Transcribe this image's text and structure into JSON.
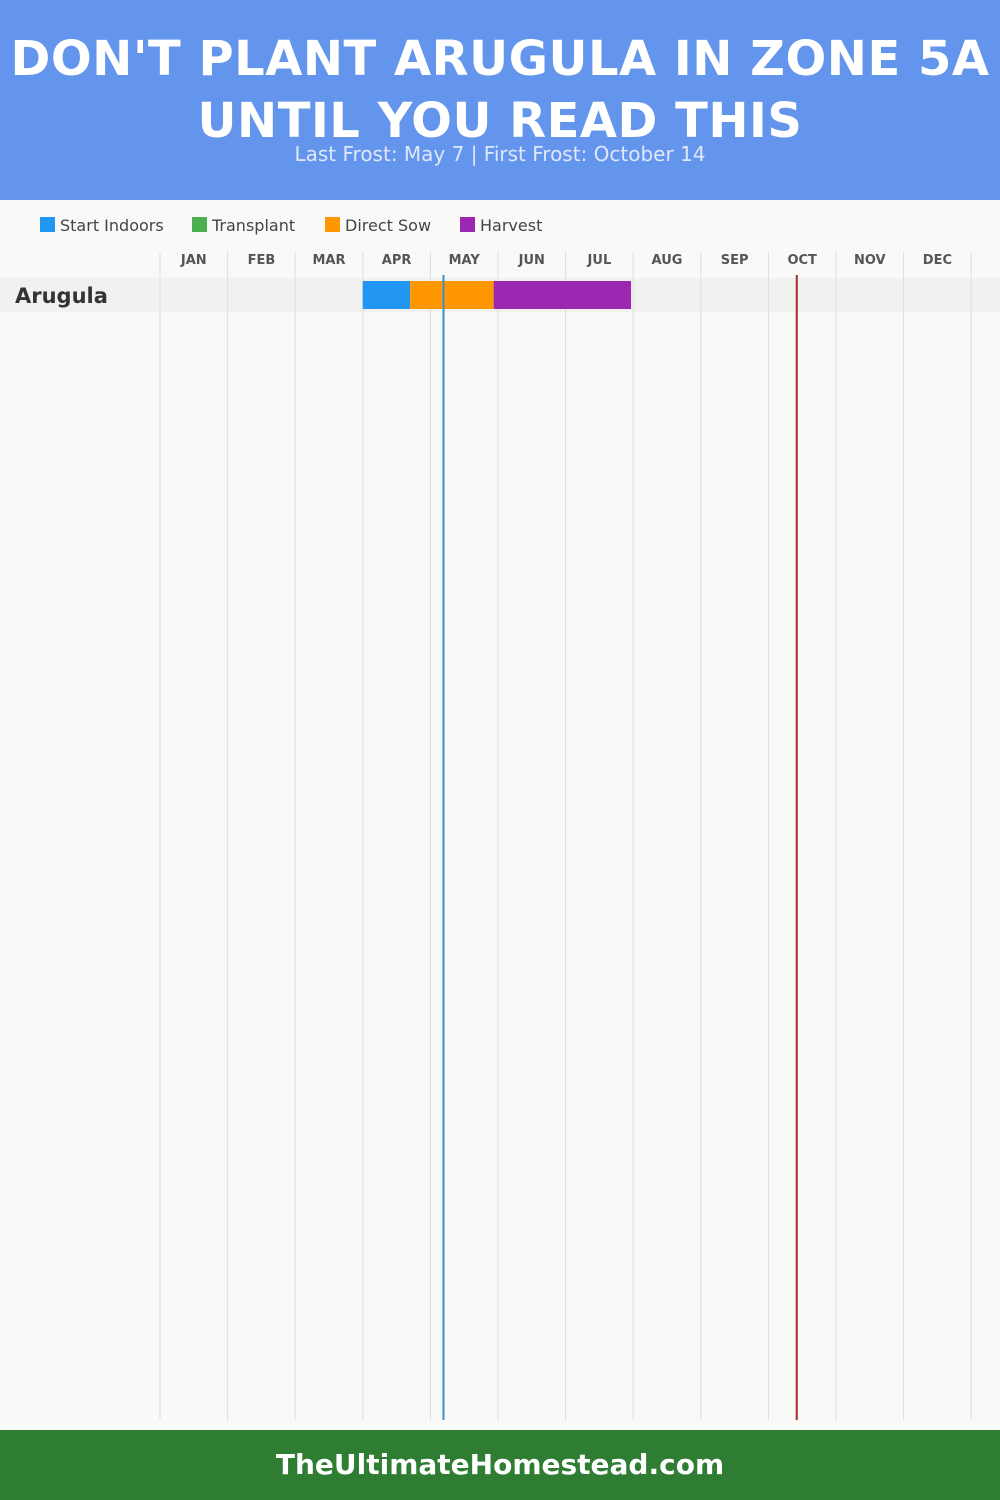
{
  "header": {
    "title": "DON'T PLANT ARUGULA IN ZONE 5A UNTIL YOU READ THIS",
    "subtitle": "Last Frost: May 7 | First Frost: October 14"
  },
  "footer": {
    "site": "TheUltimateHomestead.com"
  },
  "colors": {
    "header_bg": "#6495ed",
    "footer_bg": "#2e7d32",
    "last_frost_line": "#3a8fd6",
    "first_frost_line": "#a32a2a"
  },
  "chart_data": {
    "type": "gantt",
    "months": [
      "JAN",
      "FEB",
      "MAR",
      "APR",
      "MAY",
      "JUN",
      "JUL",
      "AUG",
      "SEP",
      "OCT",
      "NOV",
      "DEC"
    ],
    "legend": [
      {
        "name": "Start Indoors",
        "color": "#2196f3"
      },
      {
        "name": "Transplant",
        "color": "#4caf50"
      },
      {
        "name": "Direct Sow",
        "color": "#ff9800"
      },
      {
        "name": "Harvest",
        "color": "#9c27b0"
      }
    ],
    "rows": [
      {
        "crop": "Arugula",
        "segments": [
          {
            "activity": "Start Indoors",
            "start": "Apr 1",
            "end": "Apr 22"
          },
          {
            "activity": "Direct Sow",
            "start": "Apr 22",
            "end": "May 30"
          },
          {
            "activity": "Harvest",
            "start": "May 30",
            "end": "Jul 31"
          }
        ]
      }
    ],
    "frost_markers": [
      {
        "label": "Last Frost",
        "date": "May 7",
        "month": 5,
        "day": 7
      },
      {
        "label": "First Frost",
        "date": "Oct 14",
        "month": 10,
        "day": 14
      }
    ]
  }
}
